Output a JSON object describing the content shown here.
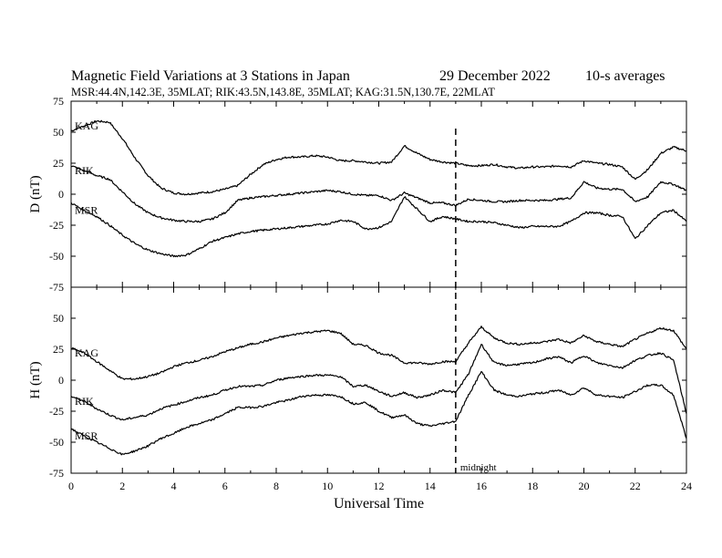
{
  "header": {
    "title": "Magnetic Field Variations at 3 Stations in Japan",
    "date": "29 December 2022",
    "averaging": "10-s averages",
    "stations_line": "MSR:44.4N,142.3E, 35MLAT;  RIK:43.5N,143.8E, 35MLAT;  KAG:31.5N,130.7E, 22MLAT"
  },
  "chart_data": [
    {
      "type": "line",
      "panel": "top",
      "ylabel": "D (nT)",
      "ylim": [
        -75,
        75
      ],
      "yticks": [
        75,
        50,
        25,
        0,
        -25,
        -50,
        -75
      ],
      "xlim": [
        0,
        24
      ],
      "x": [
        0,
        0.5,
        1,
        1.5,
        2,
        2.5,
        3,
        3.5,
        4,
        4.5,
        5,
        5.5,
        6,
        6.5,
        7,
        7.5,
        8,
        8.5,
        9,
        9.5,
        10,
        10.5,
        11,
        11.5,
        12,
        12.5,
        13,
        13.5,
        14,
        14.5,
        15,
        15.5,
        16,
        16.5,
        17,
        17.5,
        18,
        18.5,
        19,
        19.5,
        20,
        20.5,
        21,
        21.5,
        22,
        22.5,
        23,
        23.5,
        24
      ],
      "series": [
        {
          "name": "KAG",
          "values": [
            51,
            55,
            59,
            58,
            45,
            29,
            15,
            5,
            1,
            0,
            1,
            2,
            4,
            7,
            16,
            24,
            28,
            30,
            30,
            31,
            30,
            27,
            27,
            26,
            25,
            26,
            39,
            33,
            28,
            26,
            25,
            23,
            23,
            24,
            22,
            21,
            22,
            22,
            23,
            22,
            27,
            25,
            24,
            22,
            12,
            20,
            33,
            38,
            35
          ]
        },
        {
          "name": "RIK",
          "values": [
            23,
            19,
            15,
            12,
            2,
            -8,
            -15,
            -19,
            -21,
            -22,
            -22,
            -20,
            -15,
            -5,
            -3,
            -2,
            -1,
            0,
            1,
            2,
            3,
            2,
            0,
            -1,
            -1,
            -5,
            1,
            -3,
            -7,
            -7,
            -9,
            -4,
            -5,
            -6,
            -6,
            -5,
            -5,
            -5,
            -4,
            -3,
            10,
            5,
            4,
            4,
            -6,
            -2,
            10,
            8,
            3
          ]
        },
        {
          "name": "MSR",
          "values": [
            -7,
            -13,
            -18,
            -25,
            -33,
            -40,
            -45,
            -48,
            -50,
            -49,
            -44,
            -38,
            -35,
            -32,
            -30,
            -29,
            -28,
            -27,
            -26,
            -25,
            -24,
            -21,
            -22,
            -28,
            -27,
            -22,
            -2,
            -12,
            -22,
            -18,
            -20,
            -22,
            -22,
            -23,
            -25,
            -27,
            -26,
            -26,
            -26,
            -22,
            -15,
            -15,
            -17,
            -18,
            -36,
            -25,
            -15,
            -13,
            -22
          ]
        }
      ]
    },
    {
      "type": "line",
      "panel": "bottom",
      "ylabel": "H (nT)",
      "ylim": [
        -75,
        75
      ],
      "yticks": [
        50,
        25,
        0,
        -25,
        -50,
        -75
      ],
      "xlim": [
        0,
        24
      ],
      "xticks": [
        0,
        2,
        4,
        6,
        8,
        10,
        12,
        14,
        16,
        18,
        20,
        22,
        24
      ],
      "xlabel": "Universal Time",
      "x": [
        0,
        0.5,
        1,
        1.5,
        2,
        2.5,
        3,
        3.5,
        4,
        4.5,
        5,
        5.5,
        6,
        6.5,
        7,
        7.5,
        8,
        8.5,
        9,
        9.5,
        10,
        10.5,
        11,
        11.5,
        12,
        12.5,
        13,
        13.5,
        14,
        14.5,
        15,
        15.5,
        16,
        16.5,
        17,
        17.5,
        18,
        18.5,
        19,
        19.5,
        20,
        20.5,
        21,
        21.5,
        22,
        22.5,
        23,
        23.5,
        24
      ],
      "series": [
        {
          "name": "KAG",
          "values": [
            26,
            22,
            15,
            8,
            1,
            1,
            3,
            6,
            11,
            14,
            16,
            19,
            23,
            26,
            29,
            31,
            34,
            36,
            38,
            39,
            40,
            38,
            29,
            28,
            22,
            20,
            14,
            14,
            13,
            15,
            15,
            30,
            43,
            34,
            30,
            29,
            30,
            31,
            33,
            30,
            36,
            31,
            29,
            27,
            33,
            38,
            42,
            40,
            25
          ]
        },
        {
          "name": "RIK",
          "values": [
            -13,
            -17,
            -23,
            -28,
            -32,
            -30,
            -28,
            -23,
            -20,
            -17,
            -14,
            -12,
            -8,
            -5,
            -5,
            -4,
            0,
            2,
            3,
            4,
            4,
            3,
            -5,
            -4,
            -9,
            -13,
            -10,
            -14,
            -12,
            -8,
            -10,
            5,
            29,
            14,
            12,
            13,
            14,
            17,
            19,
            14,
            20,
            14,
            12,
            10,
            16,
            20,
            22,
            16,
            -27
          ]
        },
        {
          "name": "MSR",
          "values": [
            -39,
            -45,
            -50,
            -55,
            -60,
            -57,
            -53,
            -47,
            -43,
            -38,
            -35,
            -32,
            -27,
            -22,
            -22,
            -21,
            -18,
            -16,
            -13,
            -12,
            -12,
            -13,
            -19,
            -18,
            -25,
            -30,
            -28,
            -35,
            -37,
            -35,
            -33,
            -12,
            7,
            -8,
            -12,
            -13,
            -11,
            -10,
            -8,
            -12,
            -6,
            -12,
            -13,
            -14,
            -9,
            -4,
            -4,
            -12,
            -47
          ]
        }
      ]
    }
  ],
  "annotations": {
    "midnight_label": "midnight",
    "midnight_ut": 15
  },
  "colors": {
    "line": "#000000",
    "background": "#ffffff"
  }
}
